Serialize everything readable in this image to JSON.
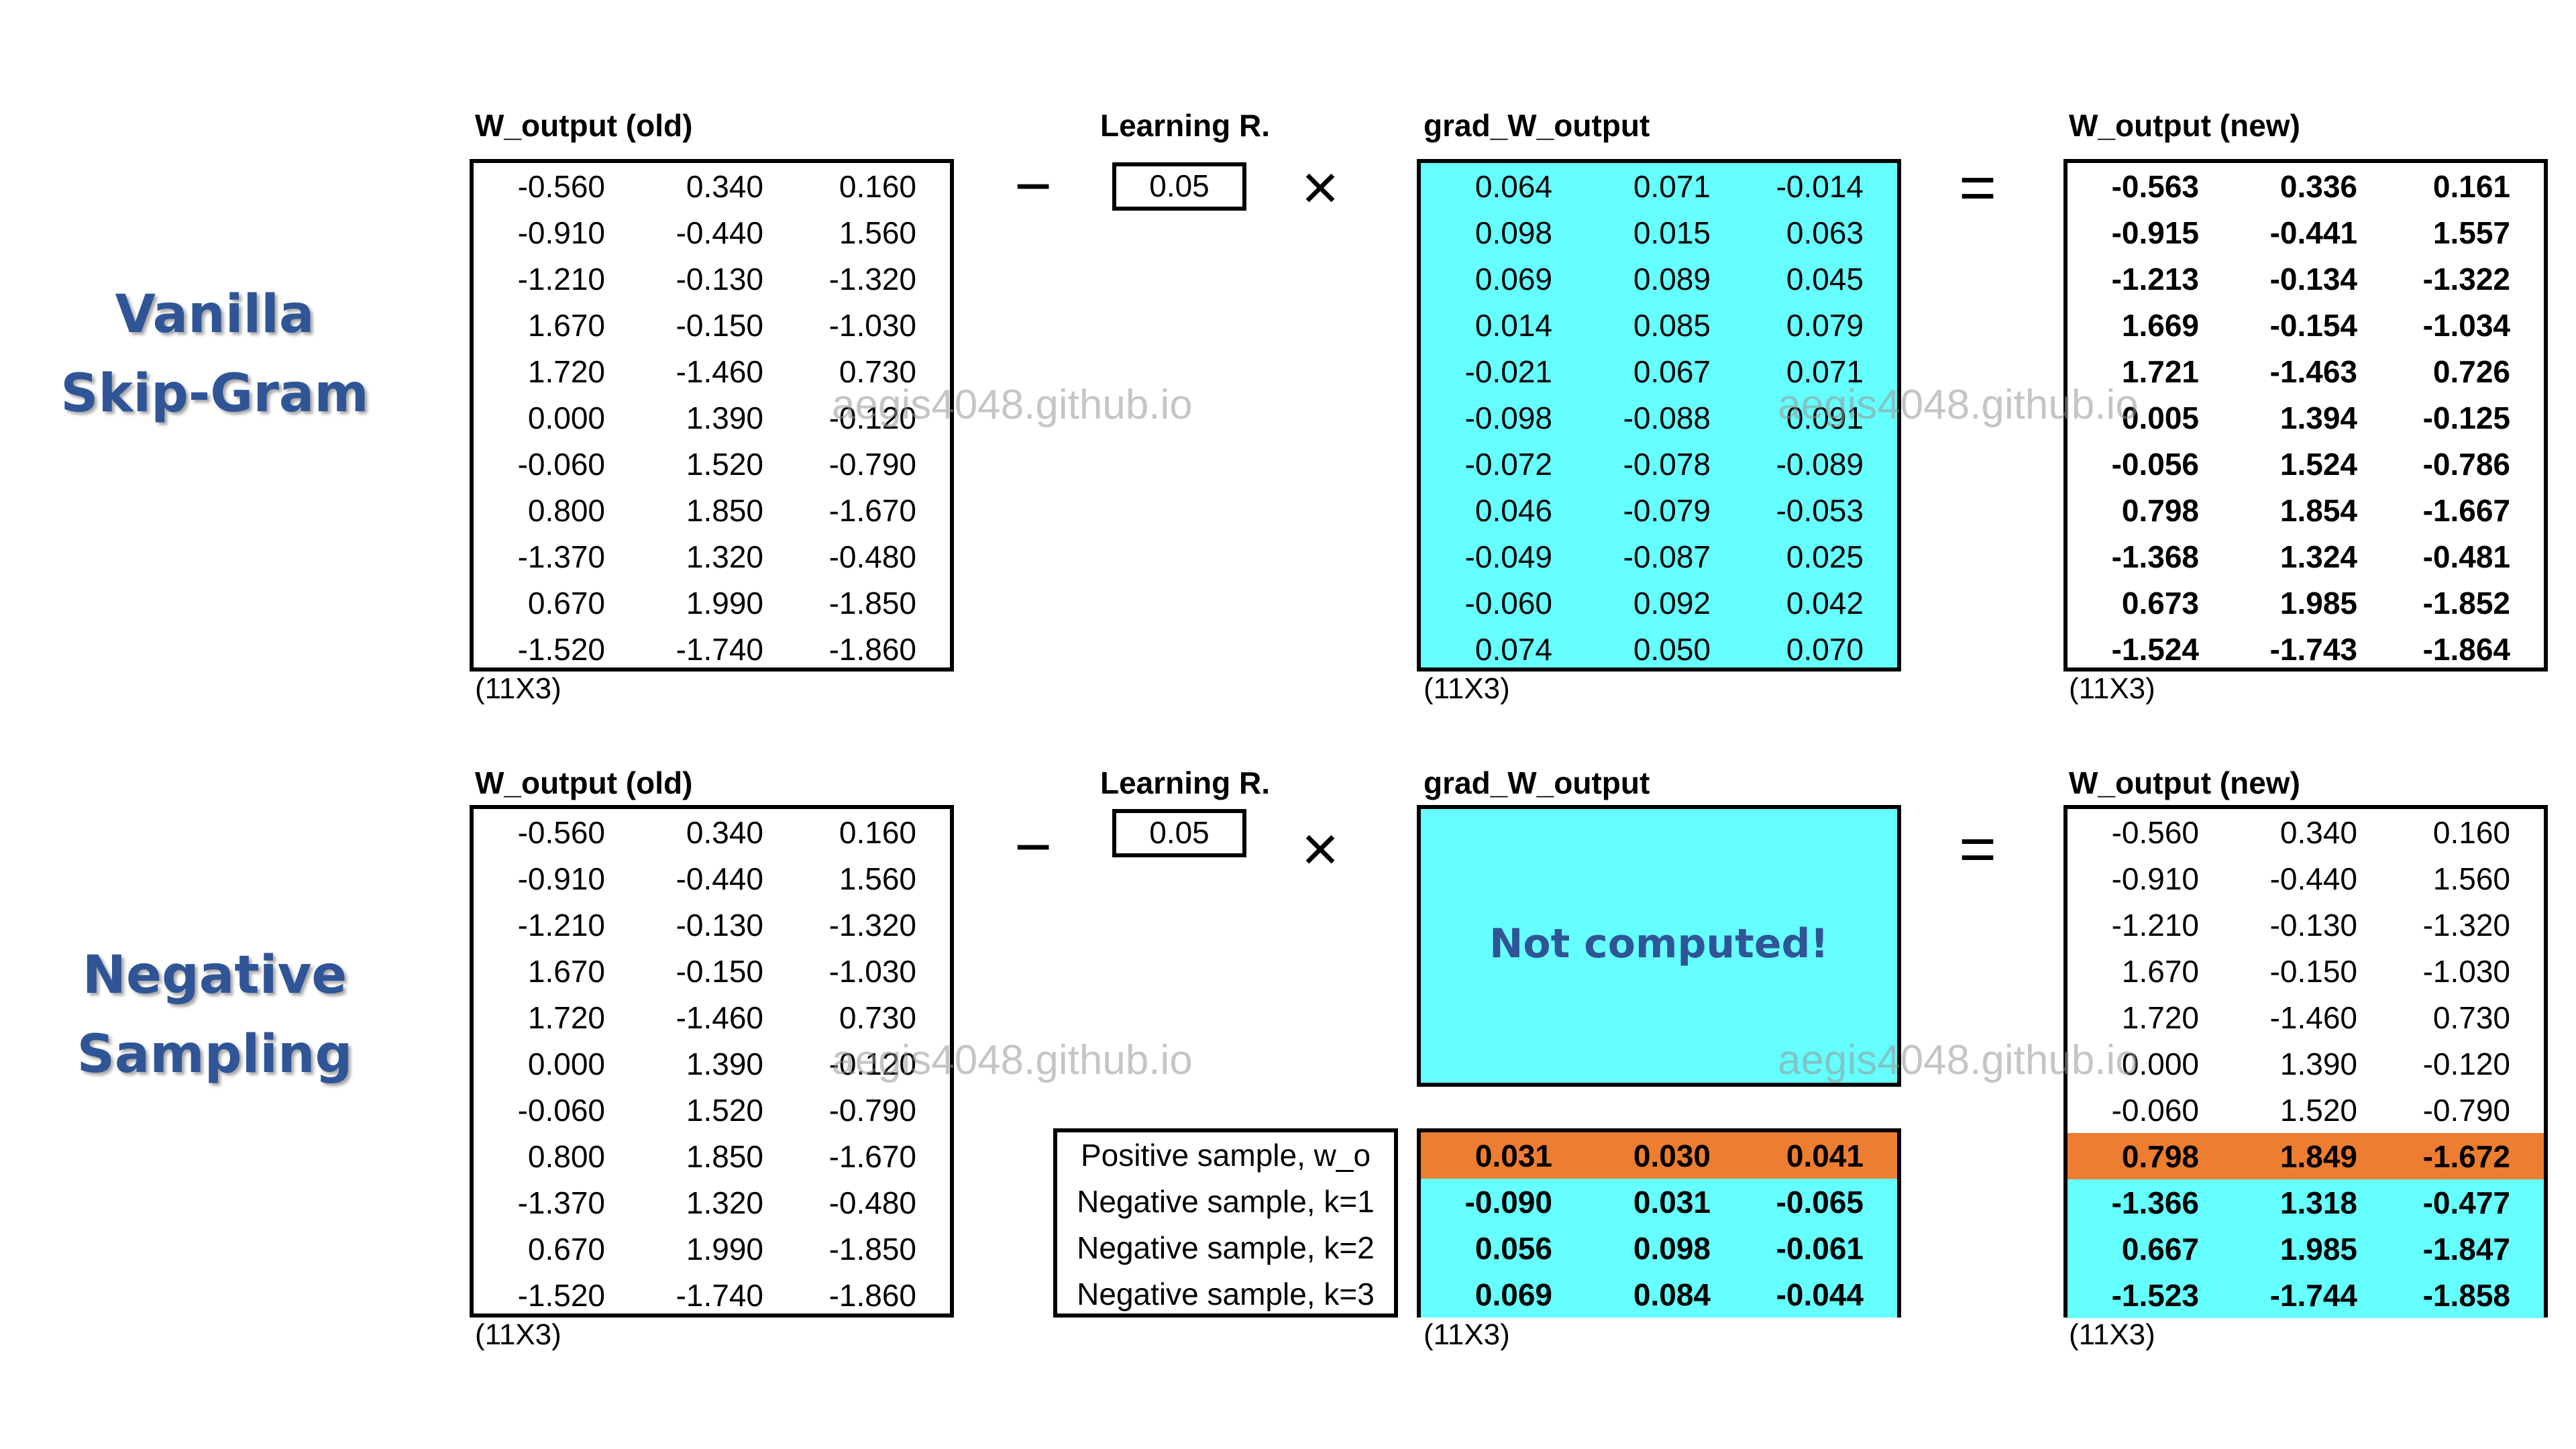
{
  "watermark": "aegis4048.github.io",
  "colors": {
    "title_blue": "#2f5597",
    "cyan": "#66ffff",
    "orange": "#ed7d31"
  },
  "sections": [
    {
      "title_line1": "Vanilla",
      "title_line2": "Skip-Gram",
      "old_label": "W_output (old)",
      "old_dim": "(11X3)",
      "old_rows": [
        [
          "-0.560",
          "0.340",
          "0.160"
        ],
        [
          "-0.910",
          "-0.440",
          "1.560"
        ],
        [
          "-1.210",
          "-0.130",
          "-1.320"
        ],
        [
          "1.670",
          "-0.150",
          "-1.030"
        ],
        [
          "1.720",
          "-1.460",
          "0.730"
        ],
        [
          "0.000",
          "1.390",
          "-0.120"
        ],
        [
          "-0.060",
          "1.520",
          "-0.790"
        ],
        [
          "0.800",
          "1.850",
          "-1.670"
        ],
        [
          "-1.370",
          "1.320",
          "-0.480"
        ],
        [
          "0.670",
          "1.990",
          "-1.850"
        ],
        [
          "-1.520",
          "-1.740",
          "-1.860"
        ]
      ],
      "minus": "−",
      "lr_label": "Learning R.",
      "lr_value": "0.05",
      "times": "×",
      "grad_label": "grad_W_output",
      "grad_dim": "(11X3)",
      "grad_rows": [
        [
          "0.064",
          "0.071",
          "-0.014"
        ],
        [
          "0.098",
          "0.015",
          "0.063"
        ],
        [
          "0.069",
          "0.089",
          "0.045"
        ],
        [
          "0.014",
          "0.085",
          "0.079"
        ],
        [
          "-0.021",
          "0.067",
          "0.071"
        ],
        [
          "-0.098",
          "-0.088",
          "0.091"
        ],
        [
          "-0.072",
          "-0.078",
          "-0.089"
        ],
        [
          "0.046",
          "-0.079",
          "-0.053"
        ],
        [
          "-0.049",
          "-0.087",
          "0.025"
        ],
        [
          "-0.060",
          "0.092",
          "0.042"
        ],
        [
          "0.074",
          "0.050",
          "0.070"
        ]
      ],
      "equals": "=",
      "new_label": "W_output (new)",
      "new_dim": "(11X3)",
      "new_rows": [
        [
          "-0.563",
          "0.336",
          "0.161"
        ],
        [
          "-0.915",
          "-0.441",
          "1.557"
        ],
        [
          "-1.213",
          "-0.134",
          "-1.322"
        ],
        [
          "1.669",
          "-0.154",
          "-1.034"
        ],
        [
          "1.721",
          "-1.463",
          "0.726"
        ],
        [
          "0.005",
          "1.394",
          "-0.125"
        ],
        [
          "-0.056",
          "1.524",
          "-0.786"
        ],
        [
          "0.798",
          "1.854",
          "-1.667"
        ],
        [
          "-1.368",
          "1.324",
          "-0.481"
        ],
        [
          "0.673",
          "1.985",
          "-1.852"
        ],
        [
          "-1.524",
          "-1.743",
          "-1.864"
        ]
      ]
    },
    {
      "title_line1": "Negative",
      "title_line2": "Sampling",
      "old_label": "W_output (old)",
      "old_dim": "(11X3)",
      "old_rows": [
        [
          "-0.560",
          "0.340",
          "0.160"
        ],
        [
          "-0.910",
          "-0.440",
          "1.560"
        ],
        [
          "-1.210",
          "-0.130",
          "-1.320"
        ],
        [
          "1.670",
          "-0.150",
          "-1.030"
        ],
        [
          "1.720",
          "-1.460",
          "0.730"
        ],
        [
          "0.000",
          "1.390",
          "-0.120"
        ],
        [
          "-0.060",
          "1.520",
          "-0.790"
        ],
        [
          "0.800",
          "1.850",
          "-1.670"
        ],
        [
          "-1.370",
          "1.320",
          "-0.480"
        ],
        [
          "0.670",
          "1.990",
          "-1.850"
        ],
        [
          "-1.520",
          "-1.740",
          "-1.860"
        ]
      ],
      "minus": "−",
      "lr_label": "Learning R.",
      "lr_value": "0.05",
      "times": "×",
      "grad_label": "grad_W_output",
      "grad_dim": "(11X3)",
      "not_computed": "Not computed!",
      "grad_rows": [
        [
          "0.031",
          "0.030",
          "0.041"
        ],
        [
          "-0.090",
          "0.031",
          "-0.065"
        ],
        [
          "0.056",
          "0.098",
          "-0.061"
        ],
        [
          "0.069",
          "0.084",
          "-0.044"
        ]
      ],
      "legend": [
        "Positive sample, w_o",
        "Negative sample, k=1",
        "Negative sample, k=2",
        "Negative sample, k=3"
      ],
      "equals": "=",
      "new_label": "W_output (new)",
      "new_dim": "(11X3)",
      "new_rows": [
        [
          "-0.560",
          "0.340",
          "0.160"
        ],
        [
          "-0.910",
          "-0.440",
          "1.560"
        ],
        [
          "-1.210",
          "-0.130",
          "-1.320"
        ],
        [
          "1.670",
          "-0.150",
          "-1.030"
        ],
        [
          "1.720",
          "-1.460",
          "0.730"
        ],
        [
          "0.000",
          "1.390",
          "-0.120"
        ],
        [
          "-0.060",
          "1.520",
          "-0.790"
        ],
        [
          "0.798",
          "1.849",
          "-1.672"
        ],
        [
          "-1.366",
          "1.318",
          "-0.477"
        ],
        [
          "0.667",
          "1.985",
          "-1.847"
        ],
        [
          "-1.523",
          "-1.744",
          "-1.858"
        ]
      ]
    }
  ]
}
